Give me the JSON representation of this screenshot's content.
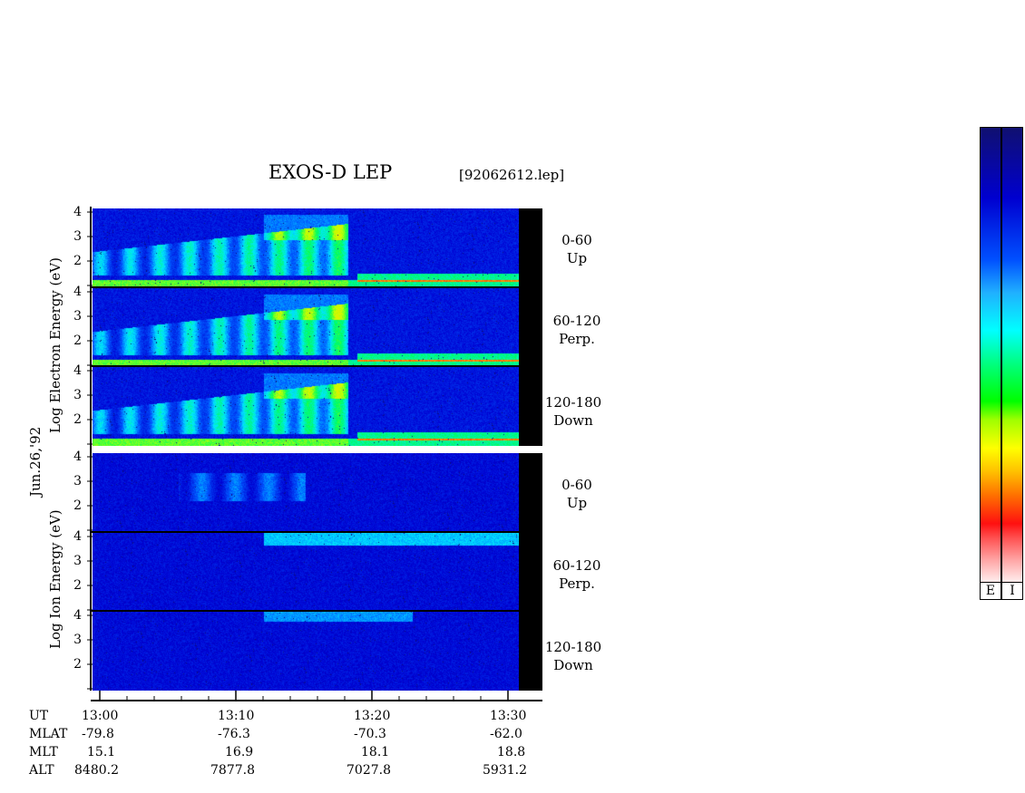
{
  "header": {
    "title": "EXOS-D LEP",
    "file": "[92062612.lep]"
  },
  "date_label": "Jun.26,'92",
  "electron_axis_label": "Log  Electron  Energy (eV)",
  "ion_axis_label": "Log  Ion  Energy (eV)",
  "y_ticks": [
    "4",
    "3",
    "2"
  ],
  "channels": [
    {
      "range": "0-60",
      "dir": "Up"
    },
    {
      "range": "60-120",
      "dir": "Perp."
    },
    {
      "range": "120-180",
      "dir": "Down"
    }
  ],
  "ephemeris": {
    "rows": [
      {
        "name": "UT",
        "values": [
          "13:00",
          "13:10",
          "13:20",
          "13:30"
        ]
      },
      {
        "name": "MLAT",
        "values": [
          "-79.8",
          "-76.3",
          "-70.3",
          "-62.0"
        ]
      },
      {
        "name": "MLT",
        "values": [
          "15.1",
          "16.9",
          "18.1",
          "18.8"
        ]
      },
      {
        "name": "ALT",
        "values": [
          "8480.2",
          "7877.8",
          "7027.8",
          "5931.2"
        ]
      }
    ]
  },
  "colorbars": [
    {
      "label": "E"
    },
    {
      "label": "I"
    }
  ],
  "chart_data": {
    "type": "heatmap",
    "title": "EXOS-D LEP",
    "xlabel": "UT",
    "ylabel": "Log Energy (eV)",
    "x_ticks": [
      "13:00",
      "13:10",
      "13:20",
      "13:30"
    ],
    "xlim": [
      "13:00",
      "13:31"
    ],
    "ylim": [
      1,
      4.2
    ],
    "y_ticks": [
      2,
      3,
      4
    ],
    "panels": [
      {
        "species": "Electron",
        "pitch_angle": "0-60",
        "direction": "Up"
      },
      {
        "species": "Electron",
        "pitch_angle": "60-120",
        "direction": "Perp."
      },
      {
        "species": "Electron",
        "pitch_angle": "120-180",
        "direction": "Down"
      },
      {
        "species": "Ion",
        "pitch_angle": "0-60",
        "direction": "Up"
      },
      {
        "species": "Ion",
        "pitch_angle": "60-120",
        "direction": "Perp."
      },
      {
        "species": "Ion",
        "pitch_angle": "120-180",
        "direction": "Down"
      }
    ],
    "colorscale": [
      "#101070",
      "#0000d0",
      "#00ffff",
      "#00ff00",
      "#ffff00",
      "#ff1010",
      "#ffffff"
    ]
  }
}
